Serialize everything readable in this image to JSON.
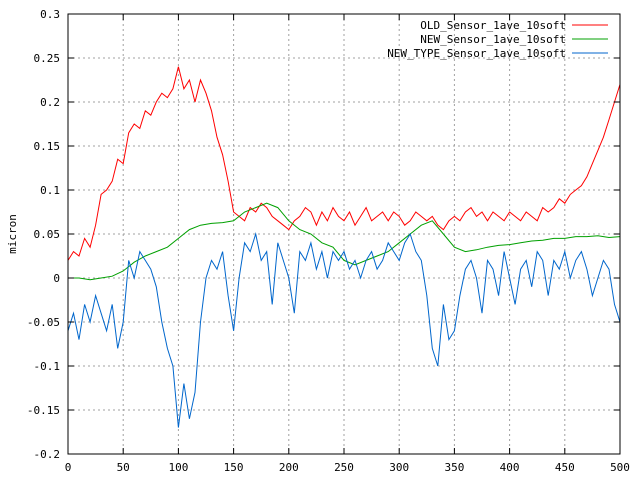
{
  "chart_data": {
    "type": "line",
    "title": "",
    "xlabel": "",
    "ylabel": "micron",
    "xlim": [
      0,
      500
    ],
    "ylim": [
      -0.2,
      0.3
    ],
    "x_ticks": [
      0,
      50,
      100,
      150,
      200,
      250,
      300,
      350,
      400,
      450,
      500
    ],
    "y_ticks": [
      -0.2,
      -0.15,
      -0.1,
      -0.05,
      0,
      0.05,
      0.1,
      0.15,
      0.2,
      0.25,
      0.3
    ],
    "x_tick_labels": [
      "0",
      "50",
      "100",
      "150",
      "200",
      "250",
      "300",
      "350",
      "400",
      "450",
      "500"
    ],
    "y_tick_labels": [
      "-0.2",
      "-0.15",
      "-0.1",
      "-0.05",
      "0",
      "0.05",
      "0.1",
      "0.15",
      "0.2",
      "0.25",
      "0.3"
    ],
    "grid": true,
    "legend_position": "top-right",
    "series": [
      {
        "name": "OLD_Sensor_1ave_10soft",
        "color": "#ff0000",
        "x": [
          0,
          5,
          10,
          15,
          20,
          25,
          30,
          35,
          40,
          45,
          50,
          55,
          60,
          65,
          70,
          75,
          80,
          85,
          90,
          95,
          100,
          105,
          110,
          115,
          120,
          125,
          130,
          135,
          140,
          145,
          150,
          155,
          160,
          165,
          170,
          175,
          180,
          185,
          190,
          195,
          200,
          205,
          210,
          215,
          220,
          225,
          230,
          235,
          240,
          245,
          250,
          255,
          260,
          265,
          270,
          275,
          280,
          285,
          290,
          295,
          300,
          305,
          310,
          315,
          320,
          325,
          330,
          335,
          340,
          345,
          350,
          355,
          360,
          365,
          370,
          375,
          380,
          385,
          390,
          395,
          400,
          405,
          410,
          415,
          420,
          425,
          430,
          435,
          440,
          445,
          450,
          455,
          460,
          465,
          470,
          475,
          480,
          485,
          490,
          495,
          500
        ],
        "y": [
          0.02,
          0.03,
          0.025,
          0.045,
          0.035,
          0.06,
          0.095,
          0.1,
          0.11,
          0.135,
          0.13,
          0.165,
          0.175,
          0.17,
          0.19,
          0.185,
          0.2,
          0.21,
          0.205,
          0.215,
          0.24,
          0.215,
          0.225,
          0.2,
          0.225,
          0.21,
          0.19,
          0.16,
          0.14,
          0.11,
          0.075,
          0.07,
          0.065,
          0.08,
          0.075,
          0.085,
          0.08,
          0.07,
          0.065,
          0.06,
          0.055,
          0.065,
          0.07,
          0.08,
          0.075,
          0.06,
          0.075,
          0.065,
          0.08,
          0.07,
          0.065,
          0.075,
          0.06,
          0.07,
          0.08,
          0.065,
          0.07,
          0.075,
          0.065,
          0.075,
          0.07,
          0.06,
          0.065,
          0.075,
          0.07,
          0.065,
          0.07,
          0.06,
          0.055,
          0.065,
          0.07,
          0.065,
          0.075,
          0.08,
          0.07,
          0.075,
          0.065,
          0.075,
          0.07,
          0.065,
          0.075,
          0.07,
          0.065,
          0.075,
          0.07,
          0.065,
          0.08,
          0.075,
          0.08,
          0.09,
          0.085,
          0.095,
          0.1,
          0.105,
          0.115,
          0.13,
          0.145,
          0.16,
          0.18,
          0.2,
          0.22
        ]
      },
      {
        "name": "NEW_Sensor_1ave_10soft",
        "color": "#00a000",
        "x": [
          0,
          10,
          20,
          30,
          40,
          50,
          60,
          70,
          80,
          90,
          100,
          110,
          120,
          130,
          140,
          150,
          160,
          170,
          180,
          190,
          200,
          210,
          220,
          230,
          240,
          250,
          260,
          270,
          280,
          290,
          300,
          310,
          320,
          330,
          340,
          350,
          360,
          370,
          380,
          390,
          400,
          410,
          420,
          430,
          440,
          450,
          460,
          470,
          480,
          490,
          500
        ],
        "y": [
          0.0,
          0.0,
          -0.002,
          0.0,
          0.002,
          0.008,
          0.018,
          0.025,
          0.03,
          0.035,
          0.045,
          0.055,
          0.06,
          0.062,
          0.063,
          0.065,
          0.075,
          0.08,
          0.085,
          0.08,
          0.065,
          0.055,
          0.05,
          0.04,
          0.035,
          0.02,
          0.015,
          0.02,
          0.025,
          0.03,
          0.04,
          0.05,
          0.06,
          0.065,
          0.05,
          0.035,
          0.03,
          0.032,
          0.035,
          0.037,
          0.038,
          0.04,
          0.042,
          0.043,
          0.045,
          0.045,
          0.047,
          0.047,
          0.048,
          0.046,
          0.047
        ]
      },
      {
        "name": "NEW_TYPE_Sensor_1ave_10soft",
        "color": "#0066cc",
        "x": [
          0,
          5,
          10,
          15,
          20,
          25,
          30,
          35,
          40,
          45,
          50,
          55,
          60,
          65,
          70,
          75,
          80,
          85,
          90,
          95,
          100,
          105,
          110,
          115,
          120,
          125,
          130,
          135,
          140,
          145,
          150,
          155,
          160,
          165,
          170,
          175,
          180,
          185,
          190,
          195,
          200,
          205,
          210,
          215,
          220,
          225,
          230,
          235,
          240,
          245,
          250,
          255,
          260,
          265,
          270,
          275,
          280,
          285,
          290,
          295,
          300,
          305,
          310,
          315,
          320,
          325,
          330,
          335,
          340,
          345,
          350,
          355,
          360,
          365,
          370,
          375,
          380,
          385,
          390,
          395,
          400,
          405,
          410,
          415,
          420,
          425,
          430,
          435,
          440,
          445,
          450,
          455,
          460,
          465,
          470,
          475,
          480,
          485,
          490,
          495,
          500
        ],
        "y": [
          -0.06,
          -0.04,
          -0.07,
          -0.03,
          -0.05,
          -0.02,
          -0.04,
          -0.06,
          -0.03,
          -0.08,
          -0.05,
          0.02,
          0.0,
          0.03,
          0.02,
          0.01,
          -0.01,
          -0.05,
          -0.08,
          -0.1,
          -0.17,
          -0.12,
          -0.16,
          -0.13,
          -0.05,
          0.0,
          0.02,
          0.01,
          0.03,
          -0.02,
          -0.06,
          0.0,
          0.04,
          0.03,
          0.05,
          0.02,
          0.03,
          -0.03,
          0.04,
          0.02,
          0.0,
          -0.04,
          0.03,
          0.02,
          0.04,
          0.01,
          0.03,
          0.0,
          0.03,
          0.02,
          0.03,
          0.01,
          0.02,
          0.0,
          0.02,
          0.03,
          0.01,
          0.02,
          0.04,
          0.03,
          0.02,
          0.04,
          0.05,
          0.03,
          0.02,
          -0.02,
          -0.08,
          -0.1,
          -0.03,
          -0.07,
          -0.06,
          -0.02,
          0.01,
          0.02,
          0.0,
          -0.04,
          0.02,
          0.01,
          -0.02,
          0.03,
          0.0,
          -0.03,
          0.01,
          0.02,
          -0.01,
          0.03,
          0.02,
          -0.02,
          0.02,
          0.01,
          0.03,
          0.0,
          0.02,
          0.03,
          0.01,
          -0.02,
          0.0,
          0.02,
          0.01,
          -0.03,
          -0.05
        ]
      }
    ]
  }
}
